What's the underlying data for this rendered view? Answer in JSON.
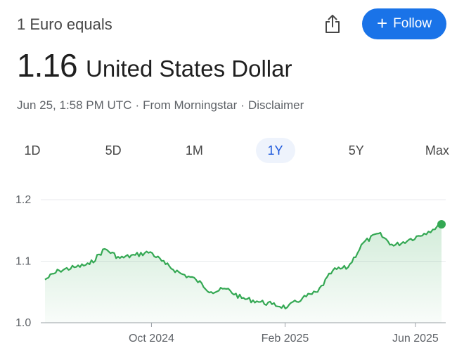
{
  "header": {
    "base_text": "1 Euro equals",
    "follow_label": "Follow"
  },
  "rate": {
    "value": "1.16",
    "currency": "United States Dollar"
  },
  "meta": {
    "timestamp": "Jun 25, 1:58 PM UTC",
    "source": "From Morningstar",
    "disclaimer": "Disclaimer"
  },
  "range_tabs": [
    {
      "label": "1D",
      "active": false
    },
    {
      "label": "5D",
      "active": false
    },
    {
      "label": "1M",
      "active": false
    },
    {
      "label": "1Y",
      "active": true
    },
    {
      "label": "5Y",
      "active": false
    },
    {
      "label": "Max",
      "active": false
    }
  ],
  "colors": {
    "accent": "#1a73e8",
    "line": "#34a853",
    "active_tab_bg": "#eef3fc"
  },
  "chart_data": {
    "type": "area",
    "series": [
      {
        "x": [
          "2024-06-25",
          "2024-07-08",
          "2024-07-22",
          "2024-08-05",
          "2024-08-19",
          "2024-09-02",
          "2024-09-16",
          "2024-09-30",
          "2024-10-14",
          "2024-10-28",
          "2024-11-11",
          "2024-11-25",
          "2024-12-09",
          "2024-12-23",
          "2025-01-06",
          "2025-01-20",
          "2025-02-03",
          "2025-02-17",
          "2025-03-03",
          "2025-03-17",
          "2025-03-31",
          "2025-04-14",
          "2025-04-28",
          "2025-05-12",
          "2025-05-26",
          "2025-06-09",
          "2025-06-25"
        ],
        "values": [
          1.07,
          1.085,
          1.09,
          1.095,
          1.12,
          1.105,
          1.11,
          1.115,
          1.095,
          1.08,
          1.07,
          1.05,
          1.055,
          1.04,
          1.035,
          1.03,
          1.025,
          1.04,
          1.05,
          1.085,
          1.09,
          1.13,
          1.145,
          1.125,
          1.135,
          1.145,
          1.16
        ]
      }
    ],
    "xticks": [
      "Oct 2024",
      "Feb 2025",
      "Jun 2025"
    ],
    "xtick_dates": [
      "2024-10-01",
      "2025-02-01",
      "2025-06-01"
    ],
    "yticks": [
      1.0,
      1.1,
      1.2
    ],
    "ylim": [
      1.0,
      1.2
    ],
    "xlim": [
      "2024-06-25",
      "2025-06-25"
    ],
    "grid": true,
    "legend": "none"
  }
}
